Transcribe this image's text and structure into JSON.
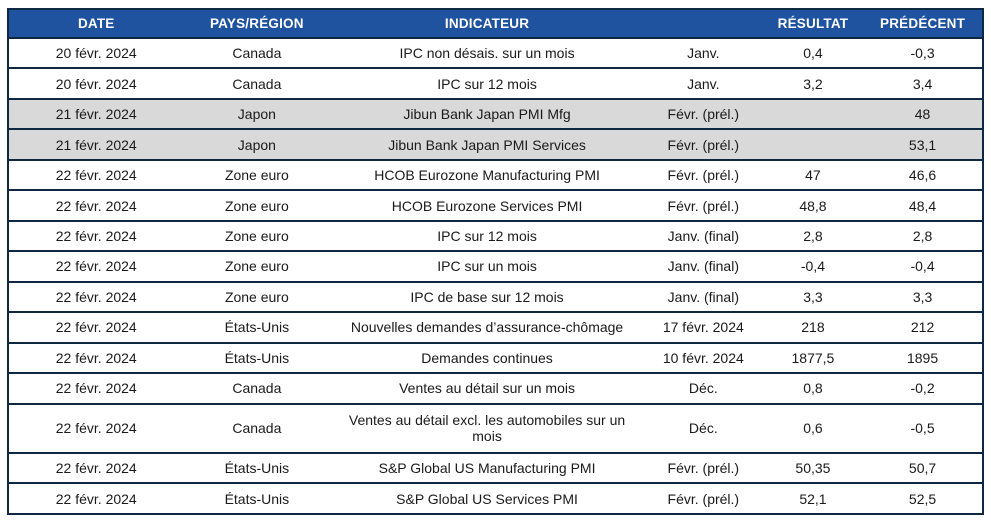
{
  "colors": {
    "header_bg": "#20539f",
    "header_text": "#ffffff",
    "border": "#0e2841",
    "row_alt_bg": "#d9d9d9",
    "text": "#1a1a1a"
  },
  "chart_data": {
    "type": "table",
    "columns": [
      {
        "key": "date",
        "label": "DATE"
      },
      {
        "key": "region",
        "label": "PAYS/RÉGION"
      },
      {
        "key": "indicator",
        "label": "INDICATEUR"
      },
      {
        "key": "period",
        "label": ""
      },
      {
        "key": "result",
        "label": "RÉSULTAT"
      },
      {
        "key": "previous",
        "label": "PRÉDÉCENT"
      }
    ],
    "rows": [
      {
        "date": "20 févr. 2024",
        "region": "Canada",
        "indicator": "IPC non désais. sur un mois",
        "period": "Janv.",
        "result": "0,4",
        "previous": "-0,3",
        "highlight": false
      },
      {
        "date": "20 févr. 2024",
        "region": "Canada",
        "indicator": "IPC sur 12 mois",
        "period": "Janv.",
        "result": "3,2",
        "previous": "3,4",
        "highlight": false
      },
      {
        "date": "21 févr. 2024",
        "region": "Japon",
        "indicator": "Jibun Bank Japan PMI Mfg",
        "period": "Févr. (prél.)",
        "result": "",
        "previous": "48",
        "highlight": true
      },
      {
        "date": "21 févr. 2024",
        "region": "Japon",
        "indicator": "Jibun Bank Japan PMI Services",
        "period": "Févr. (prél.)",
        "result": "",
        "previous": "53,1",
        "highlight": true
      },
      {
        "date": "22 févr. 2024",
        "region": "Zone euro",
        "indicator": "HCOB Eurozone Manufacturing PMI",
        "period": "Févr. (prél.)",
        "result": "47",
        "previous": "46,6",
        "highlight": false
      },
      {
        "date": "22 févr. 2024",
        "region": "Zone euro",
        "indicator": "HCOB Eurozone Services PMI",
        "period": "Févr. (prél.)",
        "result": "48,8",
        "previous": "48,4",
        "highlight": false
      },
      {
        "date": "22 févr. 2024",
        "region": "Zone euro",
        "indicator": "IPC sur 12 mois",
        "period": "Janv. (final)",
        "result": "2,8",
        "previous": "2,8",
        "highlight": false
      },
      {
        "date": "22 févr. 2024",
        "region": "Zone euro",
        "indicator": "IPC sur un mois",
        "period": "Janv. (final)",
        "result": "-0,4",
        "previous": "-0,4",
        "highlight": false
      },
      {
        "date": "22 févr. 2024",
        "region": "Zone euro",
        "indicator": "IPC de base sur 12 mois",
        "period": "Janv. (final)",
        "result": "3,3",
        "previous": "3,3",
        "highlight": false
      },
      {
        "date": "22 févr. 2024",
        "region": "États-Unis",
        "indicator": "Nouvelles demandes d’assurance-chômage",
        "period": "17 févr. 2024",
        "result": "218",
        "previous": "212",
        "highlight": false
      },
      {
        "date": "22 févr. 2024",
        "region": "États-Unis",
        "indicator": "Demandes continues",
        "period": "10 févr. 2024",
        "result": "1877,5",
        "previous": "1895",
        "highlight": false
      },
      {
        "date": "22 févr. 2024",
        "region": "Canada",
        "indicator": "Ventes au détail sur un mois",
        "period": "Déc.",
        "result": "0,8",
        "previous": "-0,2",
        "highlight": false
      },
      {
        "date": "22 févr. 2024",
        "region": "Canada",
        "indicator": "Ventes au détail excl. les automobiles sur un mois",
        "period": "Déc.",
        "result": "0,6",
        "previous": "-0,5",
        "highlight": false
      },
      {
        "date": "22 févr. 2024",
        "region": "États-Unis",
        "indicator": "S&P Global US Manufacturing PMI",
        "period": "Févr. (prél.)",
        "result": "50,35",
        "previous": "50,7",
        "highlight": false
      },
      {
        "date": "22 févr. 2024",
        "region": "États-Unis",
        "indicator": "S&P Global US Services PMI",
        "period": "Févr. (prél.)",
        "result": "52,1",
        "previous": "52,5",
        "highlight": false
      }
    ]
  }
}
